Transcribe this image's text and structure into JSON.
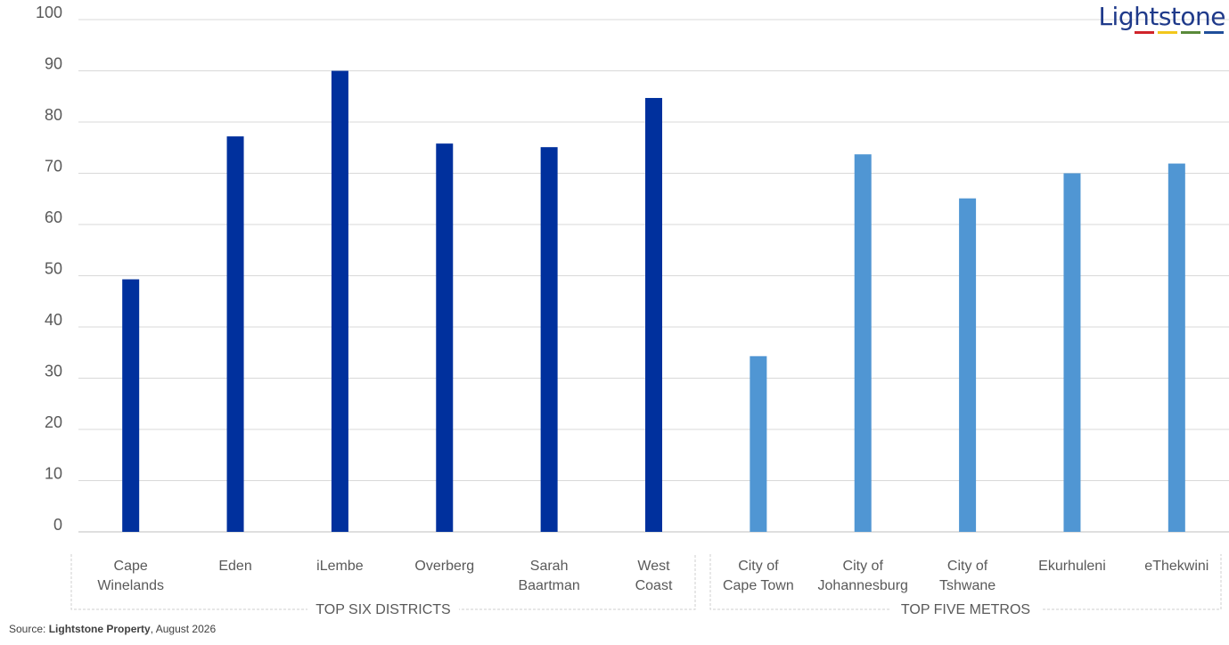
{
  "chart_data": {
    "type": "bar",
    "ylim": [
      0,
      100
    ],
    "yticks": [
      0,
      10,
      20,
      30,
      40,
      50,
      60,
      70,
      80,
      90,
      100
    ],
    "grid": true,
    "categories": [
      [
        "Cape",
        "Winelands"
      ],
      [
        "Eden"
      ],
      [
        "iLembe"
      ],
      [
        "Overberg"
      ],
      [
        "Sarah",
        "Baartman"
      ],
      [
        "West",
        "Coast"
      ],
      [
        "City of",
        "Cape Town"
      ],
      [
        "City of",
        "Johannesburg"
      ],
      [
        "City of",
        "Tshwane"
      ],
      [
        "Ekurhuleni"
      ],
      [
        "eThekwini"
      ]
    ],
    "values": [
      49.3,
      77.2,
      90.0,
      75.8,
      75.1,
      84.7,
      34.3,
      73.7,
      65.1,
      70.0,
      71.9
    ],
    "groups": [
      {
        "label": "TOP SIX DISTRICTS",
        "start": 0,
        "end": 5,
        "color": "#00309d"
      },
      {
        "label": "TOP FIVE METROS",
        "start": 6,
        "end": 10,
        "color": "#5096d3"
      }
    ]
  },
  "logo": {
    "text": "Lightstone",
    "colors": [
      "#d0232a",
      "#f2c71c",
      "#5a8a3a",
      "#1f4e9a"
    ]
  },
  "source": {
    "prefix": "Source: ",
    "name": "Lightstone Property",
    "suffix": ", August 2026"
  }
}
